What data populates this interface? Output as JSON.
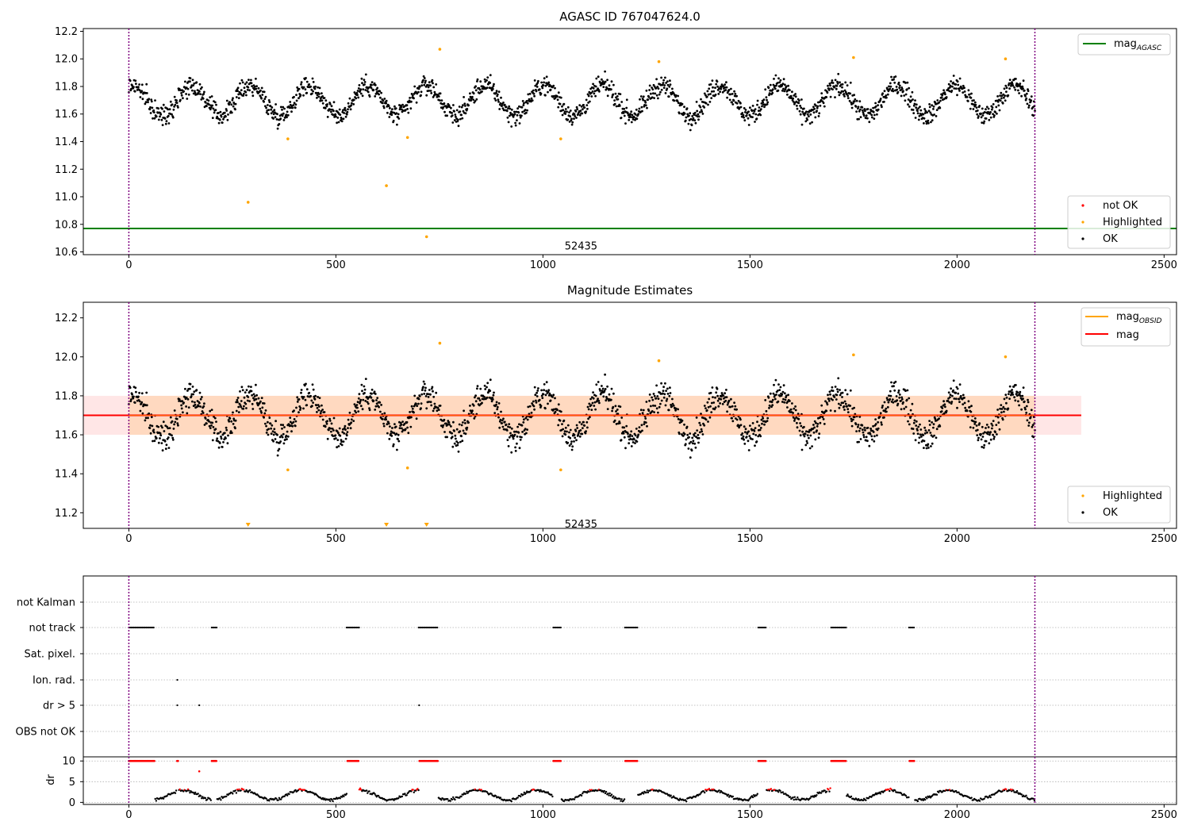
{
  "chart_data": [
    {
      "type": "scatter",
      "title": "AGASC ID 767047624.0",
      "xlim": [
        -110,
        2530
      ],
      "ylim": [
        10.58,
        12.22
      ],
      "xticks": [
        0,
        500,
        1000,
        1500,
        2000,
        2500
      ],
      "yticks": [
        10.6,
        10.8,
        11.0,
        11.2,
        11.4,
        11.6,
        11.8,
        12.0,
        12.2
      ],
      "obsid_label": {
        "text": "52435",
        "x": 1092,
        "y": 10.64
      },
      "vlines": [
        0,
        2188
      ],
      "mag_agasc": 10.77,
      "legend_lines": [
        {
          "name": "mag",
          "sub": "AGASC",
          "color": "#008000"
        }
      ],
      "legend_points": [
        {
          "name": "not OK",
          "color": "#ff0000"
        },
        {
          "name": "Highlighted",
          "color": "#ffa500"
        },
        {
          "name": "OK",
          "color": "#000000"
        }
      ],
      "highlighted": [
        {
          "x": 288,
          "y": 10.96
        },
        {
          "x": 384,
          "y": 11.42
        },
        {
          "x": 622,
          "y": 11.08
        },
        {
          "x": 673,
          "y": 11.43
        },
        {
          "x": 719,
          "y": 10.71
        },
        {
          "x": 751,
          "y": 12.07
        },
        {
          "x": 1043,
          "y": 11.42
        },
        {
          "x": 1280,
          "y": 11.98
        },
        {
          "x": 1750,
          "y": 12.01
        },
        {
          "x": 2117,
          "y": 12.0
        }
      ],
      "ok_series": {
        "n_points": 1900,
        "x_range": [
          0,
          2188
        ],
        "mean": 11.7,
        "amplitude": 0.11,
        "period": 142,
        "scatter": 0.07
      }
    },
    {
      "type": "scatter",
      "title": "Magnitude Estimates",
      "xlim": [
        -110,
        2530
      ],
      "ylim": [
        11.12,
        12.28
      ],
      "xticks": [
        0,
        500,
        1000,
        1500,
        2000,
        2500
      ],
      "yticks": [
        11.2,
        11.4,
        11.6,
        11.8,
        12.0,
        12.2
      ],
      "obsid_label": {
        "text": "52435",
        "x": 1092,
        "y": 11.14
      },
      "vlines": [
        0,
        2188
      ],
      "mag": 11.7,
      "mag_band": [
        11.6,
        11.8
      ],
      "band_x_range": [
        -110,
        2300
      ],
      "legend_lines": [
        {
          "name": "mag",
          "sub": "OBSID",
          "color": "#ffa500"
        },
        {
          "name": "mag",
          "sub": "",
          "color": "#ff0000"
        }
      ],
      "legend_points": [
        {
          "name": "Highlighted",
          "color": "#ffa500"
        },
        {
          "name": "OK",
          "color": "#000000"
        }
      ],
      "highlighted": [
        {
          "x": 384,
          "y": 11.42
        },
        {
          "x": 673,
          "y": 11.43
        },
        {
          "x": 751,
          "y": 12.07
        },
        {
          "x": 1043,
          "y": 11.42
        },
        {
          "x": 1280,
          "y": 11.98
        },
        {
          "x": 1750,
          "y": 12.01
        },
        {
          "x": 2117,
          "y": 12.0
        }
      ],
      "below_range_markers": [
        288,
        622,
        719
      ],
      "ok_series": {
        "n_points": 1900,
        "x_range": [
          0,
          2188
        ],
        "mean": 11.7,
        "amplitude": 0.11,
        "period": 142,
        "scatter": 0.07
      }
    },
    {
      "type": "scatter",
      "title": "",
      "xlim": [
        -110,
        2530
      ],
      "xticks": [
        0,
        500,
        1000,
        1500,
        2000,
        2500
      ],
      "vlines": [
        0,
        2188
      ],
      "flag_rows": [
        "not Kalman",
        "not track",
        "Sat. pixel.",
        "Ion. rad.",
        "dr > 5",
        "OBS not OK"
      ],
      "flag_events": {
        "not track": [
          [
            0,
            62
          ],
          [
            200,
            212
          ],
          [
            526,
            556
          ],
          [
            700,
            746
          ],
          [
            1025,
            1045
          ],
          [
            1198,
            1228
          ],
          [
            1520,
            1540
          ],
          [
            1696,
            1732
          ],
          [
            1884,
            1898
          ]
        ],
        "Ion. rad.": [
          [
            117,
            117
          ]
        ],
        "dr > 5": [
          [
            117,
            117
          ],
          [
            170,
            170
          ],
          [
            701,
            701
          ]
        ]
      },
      "dr_panel": {
        "ylabel": "dr",
        "ylim": [
          -0.5,
          11
        ],
        "yticks": [
          0,
          5,
          10
        ],
        "red_cap_points": [
          [
            0,
            62
          ],
          [
            116,
            119
          ],
          [
            200,
            212
          ],
          [
            526,
            556
          ],
          [
            700,
            746
          ],
          [
            1025,
            1045
          ],
          [
            1198,
            1228
          ],
          [
            1520,
            1540
          ],
          [
            1696,
            1732
          ],
          [
            1884,
            1898
          ]
        ],
        "red_isolated": [
          {
            "x": 170,
            "y": 7.5
          }
        ],
        "red_threshold": 3.0,
        "baseline": {
          "mean": 1.8,
          "amplitude": 1.2,
          "period": 142
        }
      }
    }
  ]
}
